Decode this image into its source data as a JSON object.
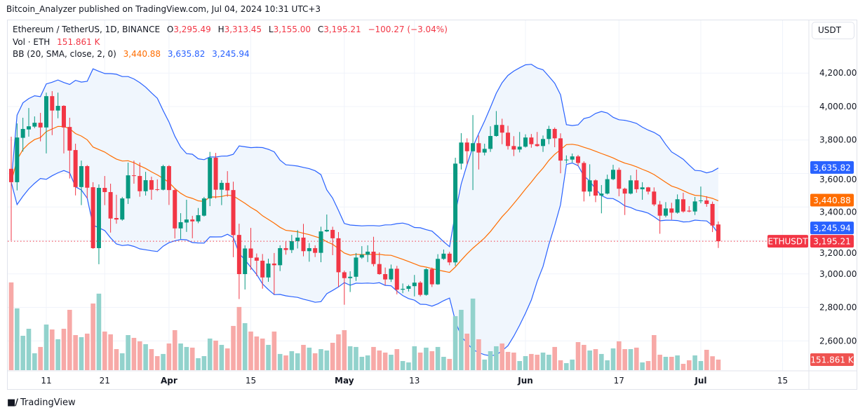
{
  "header": {
    "published": "Bitcoin_Analyzer published on TradingView.com, Jul 04, 2024 10:31 UTC+3"
  },
  "legend": {
    "symbol": "Ethereum / TetherUS, 1D, BINANCE",
    "o_label": "O",
    "o": "3,295.49",
    "h_label": "H",
    "h": "3,313.45",
    "l_label": "L",
    "l": "3,155.00",
    "c_label": "C",
    "c": "3,195.21",
    "change": "−100.27 (−3.04%)",
    "vol_label": "Vol · ETH",
    "vol": "151.861 K",
    "bb_label": "BB (20, SMA, close, 2, 0)",
    "bb_basis": "3,440.88",
    "bb_upper": "3,635.82",
    "bb_lower": "3,245.94"
  },
  "axis": {
    "currency_button": "USDT",
    "price_ticks": [
      "2,600.00",
      "2,800.00",
      "3,000.00",
      "3,200.00",
      "3,400.00",
      "3,600.00",
      "3,800.00",
      "4,000.00",
      "4,200.00"
    ],
    "time_ticks": [
      {
        "date": "2024-03-11",
        "label": "11"
      },
      {
        "date": "2024-03-21",
        "label": "21"
      },
      {
        "date": "2024-04-01",
        "label": "Apr"
      },
      {
        "date": "2024-04-15",
        "label": "15"
      },
      {
        "date": "2024-05-01",
        "label": "May"
      },
      {
        "date": "2024-05-13",
        "label": "13"
      },
      {
        "date": "2024-06-01",
        "label": "Jun"
      },
      {
        "date": "2024-06-17",
        "label": "17"
      },
      {
        "date": "2024-07-01",
        "label": "Jul"
      },
      {
        "date": "2024-07-15",
        "label": "15"
      }
    ],
    "tags": {
      "upper": {
        "value": 3635.82,
        "text": "3,635.82"
      },
      "basis": {
        "value": 3440.88,
        "text": "3,440.88"
      },
      "lower": {
        "value": 3245.94,
        "text": "3,245.94"
      },
      "last_symbol": "ETHUSDT",
      "last": {
        "value": 3195.21,
        "text": "3,195.21"
      },
      "volume": "151.861 K"
    }
  },
  "colors": {
    "up": "#089981",
    "down": "#f23645",
    "vol_up": "#92d2cc",
    "vol_down": "#f7a9a7",
    "bb_band": "#2962ff",
    "bb_basis": "#ff6d00",
    "bb_fill": "#f0f6fd",
    "grid": "#f0f3fa"
  },
  "footer": {
    "brand": "TradingView"
  },
  "chart_data": {
    "type": "candlestick",
    "symbol": "ETHUSDT",
    "interval": "1D",
    "ylim": [
      2540,
      4300
    ],
    "grid": true,
    "indicators": [
      "Volume",
      "Bollinger Bands (20, SMA, close, 2, 0)"
    ],
    "columns": [
      "date",
      "open",
      "high",
      "low",
      "close",
      "volume_k"
    ],
    "candles": [
      [
        "2024-03-05",
        3628,
        3820,
        3200,
        3548,
        1264
      ],
      [
        "2024-03-06",
        3548,
        3899,
        3499,
        3815,
        890
      ],
      [
        "2024-03-07",
        3813,
        3933,
        3731,
        3866,
        495
      ],
      [
        "2024-03-08",
        3863,
        3991,
        3820,
        3882,
        596
      ],
      [
        "2024-03-09",
        3880,
        3941,
        3871,
        3903,
        243
      ],
      [
        "2024-03-10",
        3903,
        3962,
        3792,
        3875,
        334
      ],
      [
        "2024-03-11",
        3875,
        4083,
        3720,
        4062,
        657
      ],
      [
        "2024-03-12",
        4062,
        4092,
        3829,
        3976,
        586
      ],
      [
        "2024-03-13",
        3976,
        4083,
        3930,
        4004,
        445
      ],
      [
        "2024-03-14",
        4004,
        4008,
        3720,
        3875,
        596
      ],
      [
        "2024-03-15",
        3878,
        3933,
        3570,
        3737,
        869
      ],
      [
        "2024-03-16",
        3740,
        3778,
        3469,
        3519,
        505
      ],
      [
        "2024-03-17",
        3519,
        3677,
        3411,
        3644,
        475
      ],
      [
        "2024-03-18",
        3644,
        3650,
        3452,
        3515,
        526
      ],
      [
        "2024-03-19",
        3518,
        3548,
        3150,
        3154,
        960
      ],
      [
        "2024-03-20",
        3154,
        3535,
        3058,
        3514,
        1102
      ],
      [
        "2024-03-21",
        3514,
        3585,
        3411,
        3489,
        556
      ],
      [
        "2024-03-22",
        3489,
        3539,
        3247,
        3331,
        516
      ],
      [
        "2024-03-23",
        3334,
        3473,
        3300,
        3325,
        303
      ],
      [
        "2024-03-24",
        3325,
        3460,
        3318,
        3451,
        243
      ],
      [
        "2024-03-25",
        3451,
        3665,
        3418,
        3589,
        505
      ],
      [
        "2024-03-26",
        3589,
        3677,
        3539,
        3585,
        465
      ],
      [
        "2024-03-27",
        3585,
        3665,
        3461,
        3494,
        415
      ],
      [
        "2024-03-28",
        3494,
        3610,
        3468,
        3560,
        374
      ],
      [
        "2024-03-29",
        3560,
        3581,
        3443,
        3503,
        303
      ],
      [
        "2024-03-30",
        3506,
        3565,
        3495,
        3503,
        202
      ],
      [
        "2024-03-31",
        3503,
        3652,
        3499,
        3644,
        233
      ],
      [
        "2024-04-01",
        3644,
        3650,
        3412,
        3501,
        384
      ],
      [
        "2024-04-02",
        3501,
        3510,
        3212,
        3272,
        576
      ],
      [
        "2024-04-03",
        3272,
        3363,
        3209,
        3309,
        384
      ],
      [
        "2024-04-04",
        3307,
        3443,
        3251,
        3325,
        334
      ],
      [
        "2024-04-05",
        3325,
        3347,
        3213,
        3314,
        324
      ],
      [
        "2024-04-06",
        3314,
        3394,
        3303,
        3351,
        172
      ],
      [
        "2024-04-07",
        3348,
        3460,
        3343,
        3451,
        202
      ],
      [
        "2024-04-08",
        3451,
        3729,
        3405,
        3694,
        455
      ],
      [
        "2024-04-09",
        3694,
        3723,
        3451,
        3503,
        425
      ],
      [
        "2024-04-10",
        3503,
        3560,
        3411,
        3544,
        364
      ],
      [
        "2024-04-11",
        3544,
        3614,
        3461,
        3499,
        313
      ],
      [
        "2024-04-12",
        3501,
        3551,
        3100,
        3232,
        637
      ],
      [
        "2024-04-13",
        3233,
        3300,
        2850,
        2999,
        910
      ],
      [
        "2024-04-14",
        2999,
        3171,
        2907,
        3152,
        677
      ],
      [
        "2024-04-15",
        3152,
        3275,
        3024,
        3096,
        556
      ],
      [
        "2024-04-16",
        3098,
        3122,
        2987,
        3079,
        485
      ],
      [
        "2024-04-17",
        3079,
        3119,
        2912,
        2979,
        455
      ],
      [
        "2024-04-18",
        2979,
        3091,
        2953,
        3062,
        364
      ],
      [
        "2024-04-19",
        3062,
        3125,
        2878,
        3052,
        556
      ],
      [
        "2024-04-20",
        3052,
        3171,
        3017,
        3154,
        233
      ],
      [
        "2024-04-21",
        3154,
        3196,
        3115,
        3143,
        212
      ],
      [
        "2024-04-22",
        3143,
        3233,
        3125,
        3196,
        273
      ],
      [
        "2024-04-23",
        3196,
        3262,
        3152,
        3217,
        243
      ],
      [
        "2024-04-24",
        3217,
        3299,
        3105,
        3136,
        364
      ],
      [
        "2024-04-25",
        3136,
        3184,
        3073,
        3154,
        324
      ],
      [
        "2024-04-26",
        3154,
        3171,
        3101,
        3126,
        243
      ],
      [
        "2024-04-27",
        3126,
        3282,
        3070,
        3254,
        303
      ],
      [
        "2024-04-28",
        3254,
        3355,
        3250,
        3263,
        283
      ],
      [
        "2024-04-29",
        3263,
        3282,
        3112,
        3213,
        394
      ],
      [
        "2024-04-30",
        3213,
        3250,
        2922,
        3010,
        516
      ],
      [
        "2024-05-01",
        3010,
        3020,
        2816,
        2975,
        576
      ],
      [
        "2024-05-02",
        2975,
        3016,
        2892,
        2983,
        344
      ],
      [
        "2024-05-03",
        2983,
        3125,
        2958,
        3098,
        334
      ],
      [
        "2024-05-04",
        3098,
        3166,
        3090,
        3115,
        192
      ],
      [
        "2024-05-05",
        3115,
        3171,
        3071,
        3133,
        212
      ],
      [
        "2024-05-06",
        3133,
        3222,
        3045,
        3059,
        334
      ],
      [
        "2024-05-07",
        3059,
        3129,
        2995,
        2999,
        283
      ],
      [
        "2024-05-08",
        2999,
        3038,
        2933,
        2967,
        253
      ],
      [
        "2024-05-09",
        2967,
        3056,
        2952,
        3031,
        222
      ],
      [
        "2024-05-10",
        3031,
        3048,
        2878,
        2906,
        303
      ],
      [
        "2024-05-11",
        2906,
        2943,
        2885,
        2911,
        131
      ],
      [
        "2024-05-12",
        2911,
        2935,
        2895,
        2927,
        111
      ],
      [
        "2024-05-13",
        2927,
        2994,
        2866,
        2948,
        344
      ],
      [
        "2024-05-14",
        2948,
        2957,
        2866,
        2875,
        253
      ],
      [
        "2024-05-15",
        2875,
        3034,
        2870,
        3028,
        324
      ],
      [
        "2024-05-16",
        3028,
        3038,
        2922,
        2938,
        273
      ],
      [
        "2024-05-17",
        2938,
        3118,
        2935,
        3090,
        334
      ],
      [
        "2024-05-18",
        3090,
        3146,
        3084,
        3121,
        192
      ],
      [
        "2024-05-19",
        3121,
        3132,
        3052,
        3069,
        162
      ],
      [
        "2024-05-20",
        3069,
        3694,
        3048,
        3659,
        778
      ],
      [
        "2024-05-21",
        3659,
        3841,
        3624,
        3785,
        869
      ],
      [
        "2024-05-22",
        3785,
        3810,
        3656,
        3733,
        526
      ],
      [
        "2024-05-23",
        3733,
        3949,
        3501,
        3781,
        1031
      ],
      [
        "2024-05-24",
        3781,
        3827,
        3624,
        3725,
        445
      ],
      [
        "2024-05-25",
        3725,
        3778,
        3708,
        3747,
        152
      ],
      [
        "2024-05-26",
        3747,
        3882,
        3729,
        3824,
        273
      ],
      [
        "2024-05-27",
        3824,
        3973,
        3820,
        3890,
        344
      ],
      [
        "2024-05-28",
        3890,
        3927,
        3775,
        3844,
        384
      ],
      [
        "2024-05-29",
        3844,
        3885,
        3743,
        3764,
        263
      ],
      [
        "2024-05-30",
        3764,
        3823,
        3704,
        3743,
        253
      ],
      [
        "2024-05-31",
        3743,
        3848,
        3726,
        3760,
        131
      ],
      [
        "2024-06-01",
        3760,
        3834,
        3755,
        3815,
        202
      ],
      [
        "2024-06-02",
        3815,
        3836,
        3754,
        3775,
        233
      ],
      [
        "2024-06-03",
        3775,
        3848,
        3760,
        3764,
        222
      ],
      [
        "2024-06-04",
        3764,
        3827,
        3729,
        3806,
        253
      ],
      [
        "2024-06-05",
        3806,
        3885,
        3775,
        3866,
        222
      ],
      [
        "2024-06-06",
        3866,
        3875,
        3757,
        3810,
        334
      ],
      [
        "2024-06-07",
        3810,
        3840,
        3601,
        3677,
        142
      ],
      [
        "2024-06-08",
        3681,
        3708,
        3659,
        3683,
        101
      ],
      [
        "2024-06-09",
        3683,
        3719,
        3666,
        3702,
        152
      ],
      [
        "2024-06-10",
        3702,
        3711,
        3645,
        3663,
        404
      ],
      [
        "2024-06-11",
        3663,
        3673,
        3433,
        3492,
        364
      ],
      [
        "2024-06-12",
        3492,
        3655,
        3464,
        3559,
        283
      ],
      [
        "2024-06-13",
        3559,
        3565,
        3429,
        3468,
        303
      ],
      [
        "2024-06-14",
        3468,
        3531,
        3362,
        3480,
        233
      ],
      [
        "2024-06-15",
        3480,
        3593,
        3475,
        3566,
        142
      ],
      [
        "2024-06-16",
        3566,
        3652,
        3560,
        3622,
        313
      ],
      [
        "2024-06-17",
        3622,
        3635,
        3464,
        3509,
        415
      ],
      [
        "2024-06-18",
        3509,
        3515,
        3352,
        3480,
        303
      ],
      [
        "2024-06-19",
        3480,
        3589,
        3475,
        3559,
        303
      ],
      [
        "2024-06-20",
        3559,
        3623,
        3485,
        3506,
        324
      ],
      [
        "2024-06-21",
        3506,
        3548,
        3443,
        3517,
        111
      ],
      [
        "2024-06-22",
        3517,
        3520,
        3475,
        3492,
        131
      ],
      [
        "2024-06-23",
        3492,
        3517,
        3405,
        3415,
        505
      ],
      [
        "2024-06-24",
        3415,
        3436,
        3240,
        3348,
        222
      ],
      [
        "2024-06-25",
        3348,
        3429,
        3338,
        3391,
        192
      ],
      [
        "2024-06-26",
        3391,
        3425,
        3324,
        3366,
        192
      ],
      [
        "2024-06-27",
        3366,
        3475,
        3360,
        3446,
        212
      ],
      [
        "2024-06-28",
        3446,
        3485,
        3366,
        3373,
        91
      ],
      [
        "2024-06-29",
        3378,
        3405,
        3368,
        3373,
        142
      ],
      [
        "2024-06-30",
        3373,
        3460,
        3352,
        3433,
        212
      ],
      [
        "2024-07-01",
        3436,
        3522,
        3422,
        3439,
        131
      ],
      [
        "2024-07-02",
        3439,
        3464,
        3401,
        3418,
        293
      ],
      [
        "2024-07-03",
        3418,
        3432,
        3250,
        3289,
        200
      ],
      [
        "2024-07-04",
        3295.49,
        3313.45,
        3155.0,
        3195.21,
        151.861
      ]
    ]
  }
}
